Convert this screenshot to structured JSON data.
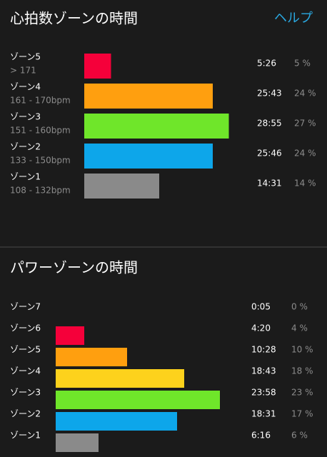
{
  "sections": [
    {
      "title": "心拍数ゾーンの時間",
      "help": "ヘルプ",
      "zones": [
        {
          "name": "ゾーン5",
          "range": "> 171",
          "time": "5:26",
          "percent": 5,
          "percent_label": "5 %",
          "color": "#f5003a"
        },
        {
          "name": "ゾーン4",
          "range": "161 - 170bpm",
          "time": "25:43",
          "percent": 24,
          "percent_label": "24 %",
          "color": "#ff9f0f"
        },
        {
          "name": "ゾーン3",
          "range": "151 - 160bpm",
          "time": "28:55",
          "percent": 27,
          "percent_label": "27 %",
          "color": "#6fe62a"
        },
        {
          "name": "ゾーン2",
          "range": "133 - 150bpm",
          "time": "25:46",
          "percent": 24,
          "percent_label": "24 %",
          "color": "#0da6ea"
        },
        {
          "name": "ゾーン1",
          "range": "108 - 132bpm",
          "time": "14:31",
          "percent": 14,
          "percent_label": "14 %",
          "color": "#8a8a8a"
        }
      ]
    },
    {
      "title": "パワーゾーンの時間",
      "zones": [
        {
          "name": "ゾーン7",
          "time": "0:05",
          "percent": 0,
          "percent_label": "0 %",
          "color": "#8a8a8a"
        },
        {
          "name": "ゾーン6",
          "time": "4:20",
          "percent": 4,
          "percent_label": "4 %",
          "color": "#f5003a"
        },
        {
          "name": "ゾーン5",
          "time": "10:28",
          "percent": 10,
          "percent_label": "10 %",
          "color": "#ff9f0f"
        },
        {
          "name": "ゾーン4",
          "time": "18:43",
          "percent": 18,
          "percent_label": "18 %",
          "color": "#fdd21c"
        },
        {
          "name": "ゾーン3",
          "time": "23:58",
          "percent": 23,
          "percent_label": "23 %",
          "color": "#6fe62a"
        },
        {
          "name": "ゾーン2",
          "time": "18:31",
          "percent": 17,
          "percent_label": "17 %",
          "color": "#0da6ea"
        },
        {
          "name": "ゾーン1",
          "time": "6:16",
          "percent": 6,
          "percent_label": "6 %",
          "color": "#8a8a8a"
        }
      ]
    }
  ]
}
